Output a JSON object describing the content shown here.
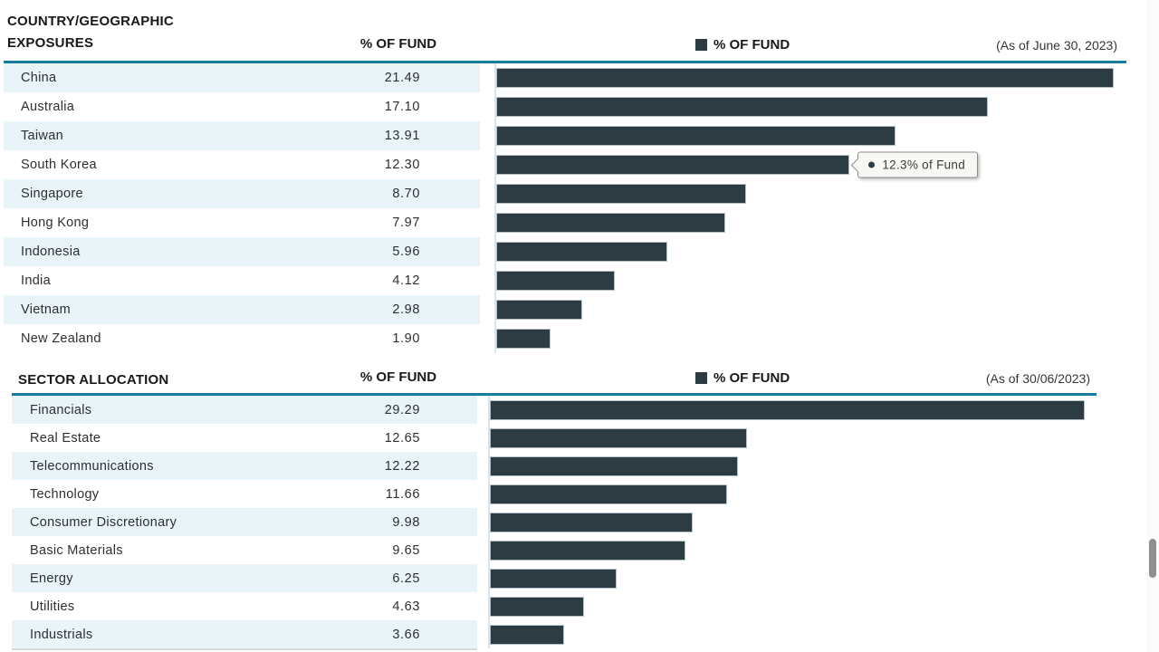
{
  "colors": {
    "bar": "#2d3b43",
    "rule": "#187ba3",
    "alt_row": "#e9f4f9"
  },
  "country_section": {
    "title_line1": "COUNTRY/GEOGRAPHIC",
    "title_line2": "EXPOSURES",
    "col_header": "% OF FUND",
    "legend_label": "% OF FUND",
    "as_of": "(As of June 30, 2023)",
    "max_value": 21.49,
    "rows": [
      {
        "label": "China",
        "value": "21.49"
      },
      {
        "label": "Australia",
        "value": "17.10"
      },
      {
        "label": "Taiwan",
        "value": "13.91"
      },
      {
        "label": "South Korea",
        "value": "12.30"
      },
      {
        "label": "Singapore",
        "value": "8.70"
      },
      {
        "label": "Hong Kong",
        "value": "7.97"
      },
      {
        "label": "Indonesia",
        "value": "5.96"
      },
      {
        "label": "India",
        "value": "4.12"
      },
      {
        "label": "Vietnam",
        "value": "2.98"
      },
      {
        "label": "New Zealand",
        "value": "1.90"
      }
    ],
    "tooltip": {
      "text": "12.3% of Fund",
      "row_index": 3
    }
  },
  "sector_section": {
    "title": "SECTOR ALLOCATION",
    "col_header": "% OF FUND",
    "legend_label": "% OF FUND",
    "as_of": "(As of 30/06/2023)",
    "max_value": 29.29,
    "rows": [
      {
        "label": "Financials",
        "value": "29.29"
      },
      {
        "label": "Real Estate",
        "value": "12.65"
      },
      {
        "label": "Telecommunications",
        "value": "12.22"
      },
      {
        "label": "Technology",
        "value": "11.66"
      },
      {
        "label": "Consumer Discretionary",
        "value": "9.98"
      },
      {
        "label": "Basic Materials",
        "value": "9.65"
      },
      {
        "label": "Energy",
        "value": "6.25"
      },
      {
        "label": "Utilities",
        "value": "4.63"
      },
      {
        "label": "Industrials",
        "value": "3.66"
      }
    ]
  },
  "chart_data": [
    {
      "type": "bar",
      "title": "COUNTRY/GEOGRAPHIC EXPOSURES",
      "legend": [
        "% OF FUND"
      ],
      "as_of": "(As of June 30, 2023)",
      "orientation": "horizontal",
      "categories": [
        "China",
        "Australia",
        "Taiwan",
        "South Korea",
        "Singapore",
        "Hong Kong",
        "Indonesia",
        "India",
        "Vietnam",
        "New Zealand"
      ],
      "values": [
        21.49,
        17.1,
        13.91,
        12.3,
        8.7,
        7.97,
        5.96,
        4.12,
        2.98,
        1.9
      ],
      "xlabel": "% OF FUND",
      "ylabel": "",
      "xlim": [
        0,
        21.49
      ],
      "grid": false,
      "annotations": [
        {
          "category": "South Korea",
          "text": "12.3% of Fund"
        }
      ]
    },
    {
      "type": "bar",
      "title": "SECTOR ALLOCATION",
      "legend": [
        "% OF FUND"
      ],
      "as_of": "(As of 30/06/2023)",
      "orientation": "horizontal",
      "categories": [
        "Financials",
        "Real Estate",
        "Telecommunications",
        "Technology",
        "Consumer Discretionary",
        "Basic Materials",
        "Energy",
        "Utilities",
        "Industrials"
      ],
      "values": [
        29.29,
        12.65,
        12.22,
        11.66,
        9.98,
        9.65,
        6.25,
        4.63,
        3.66
      ],
      "xlabel": "% OF FUND",
      "ylabel": "",
      "xlim": [
        0,
        29.29
      ],
      "grid": false
    }
  ]
}
